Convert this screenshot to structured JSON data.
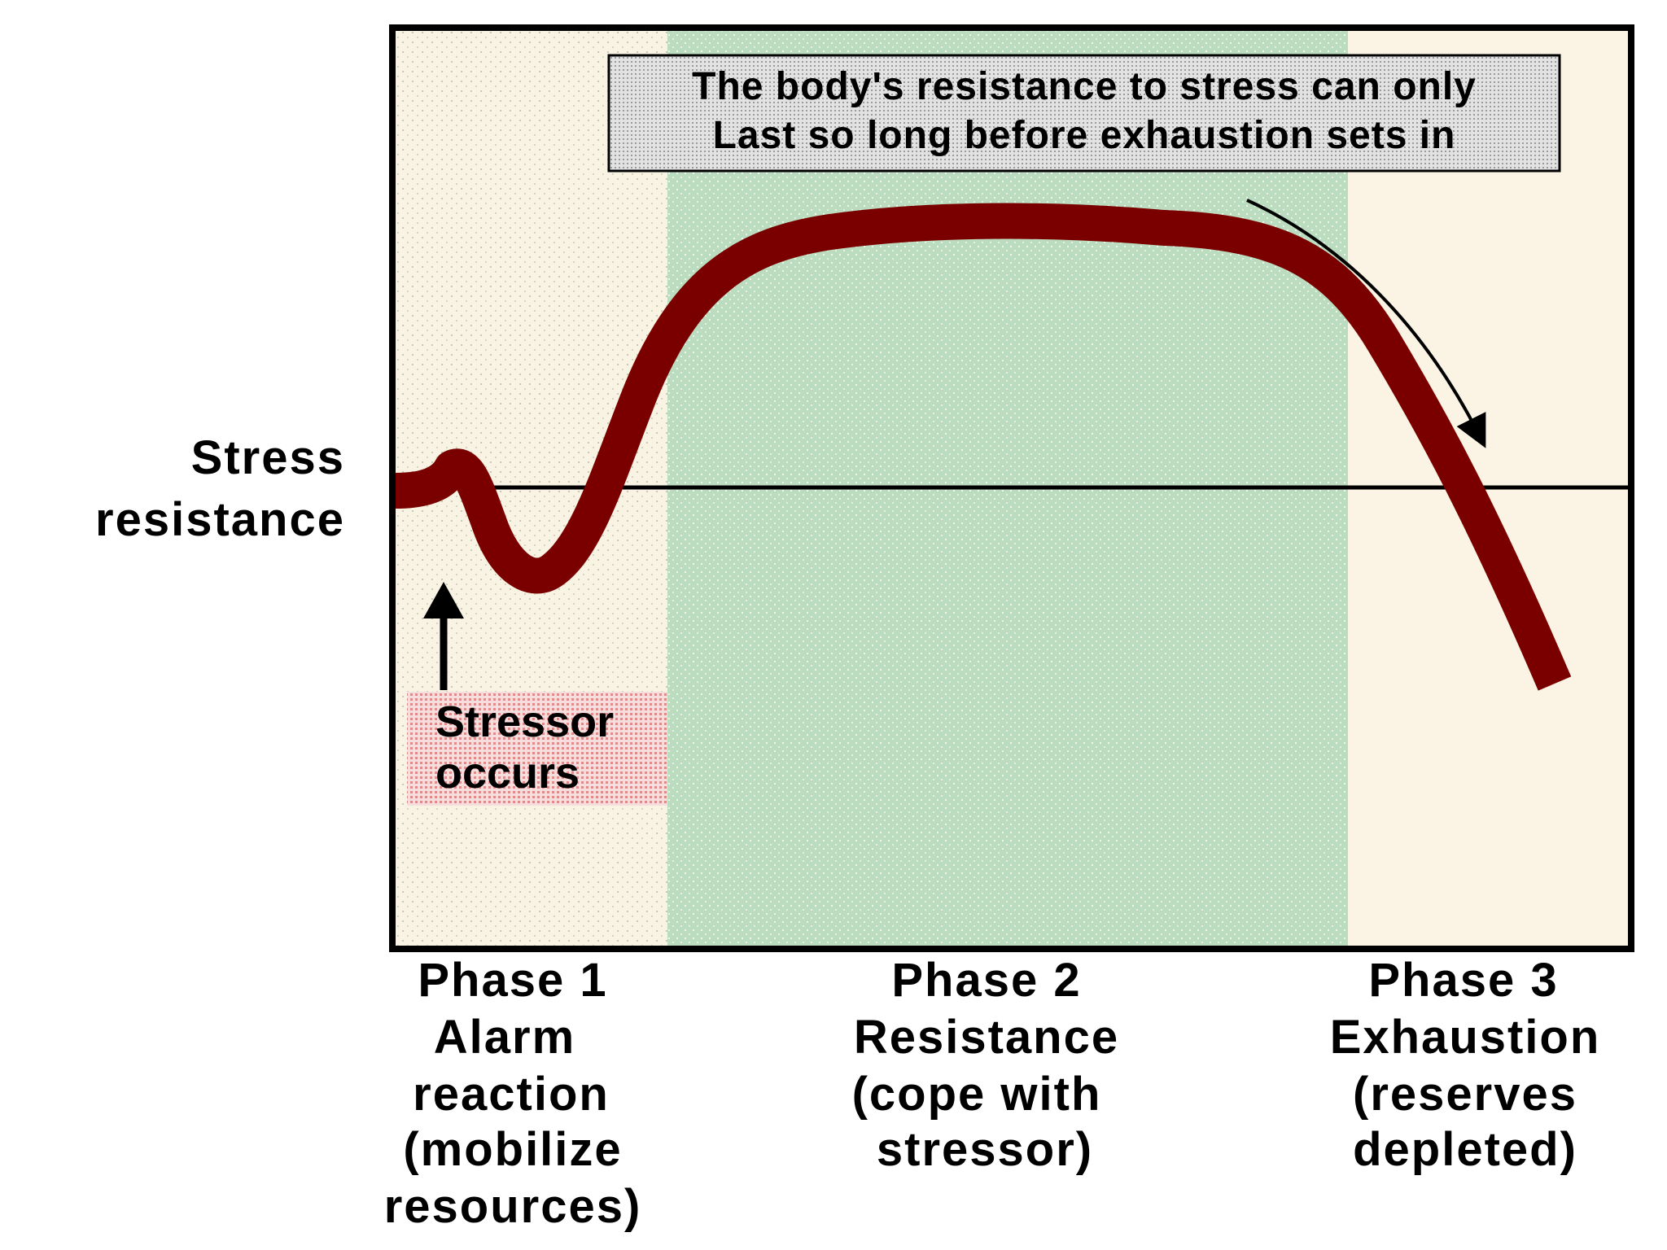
{
  "y_axis_label": [
    "Stress",
    "resistance"
  ],
  "note": [
    "The body's resistance to stress can only",
    "Last so long before exhaustion sets in"
  ],
  "stressor_label": [
    "Stressor",
    "occurs"
  ],
  "phases": [
    {
      "lines": [
        "Phase 1",
        "Alarm",
        "reaction",
        "(mobilize",
        "resources)"
      ]
    },
    {
      "lines": [
        "Phase 2",
        "Resistance",
        "(cope with",
        "stressor)"
      ]
    },
    {
      "lines": [
        "Phase 3",
        "Exhaustion",
        "(reserves",
        "depleted)"
      ]
    }
  ],
  "colors": {
    "phase1_bg": "#f8f3e3",
    "phase2_bg": "#bcdcc0",
    "phase3_bg": "#fbf4e4",
    "curve": "#7a0000",
    "frame": "#000000",
    "note_bg": "#d4d4d4",
    "stressor_bg": "#f0c8c8"
  }
}
